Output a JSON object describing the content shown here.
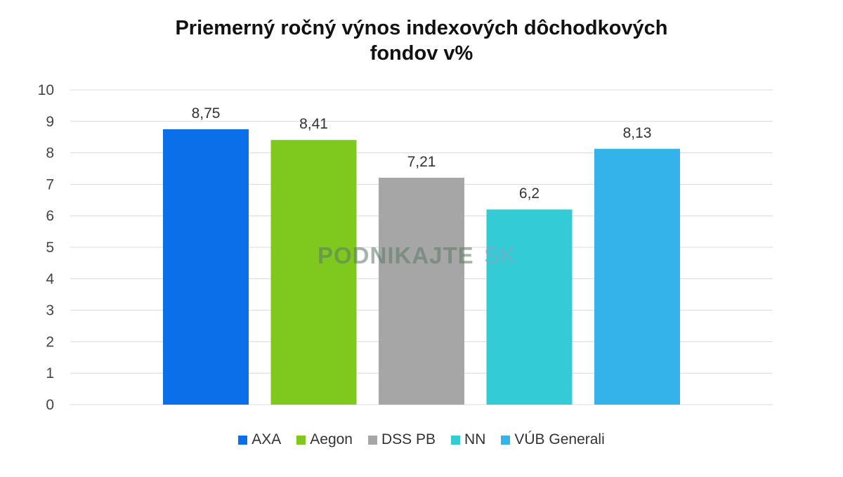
{
  "chart_data": {
    "type": "bar",
    "title_line1": "Priemerný ročný výnos indexových dôchodkových",
    "title_line2": "fondov v%",
    "categories": [
      "AXA",
      "Aegon",
      "DSS PB",
      "NN",
      "VÚB Generali"
    ],
    "values": [
      8.75,
      8.41,
      7.21,
      6.2,
      8.13
    ],
    "data_labels": [
      "8,75",
      "8,41",
      "7,21",
      "6,2",
      "8,13"
    ],
    "colors": [
      "#0a6fe8",
      "#7fc91e",
      "#a6a6a6",
      "#33ccd6",
      "#33b3ea"
    ],
    "ylim": [
      0,
      10
    ],
    "yticks": [
      0,
      1,
      2,
      3,
      4,
      5,
      6,
      7,
      8,
      9,
      10
    ],
    "grid": true,
    "legend_position": "bottom"
  },
  "watermark": {
    "part1": "PODNIKAJTE",
    "part2": "SK"
  }
}
